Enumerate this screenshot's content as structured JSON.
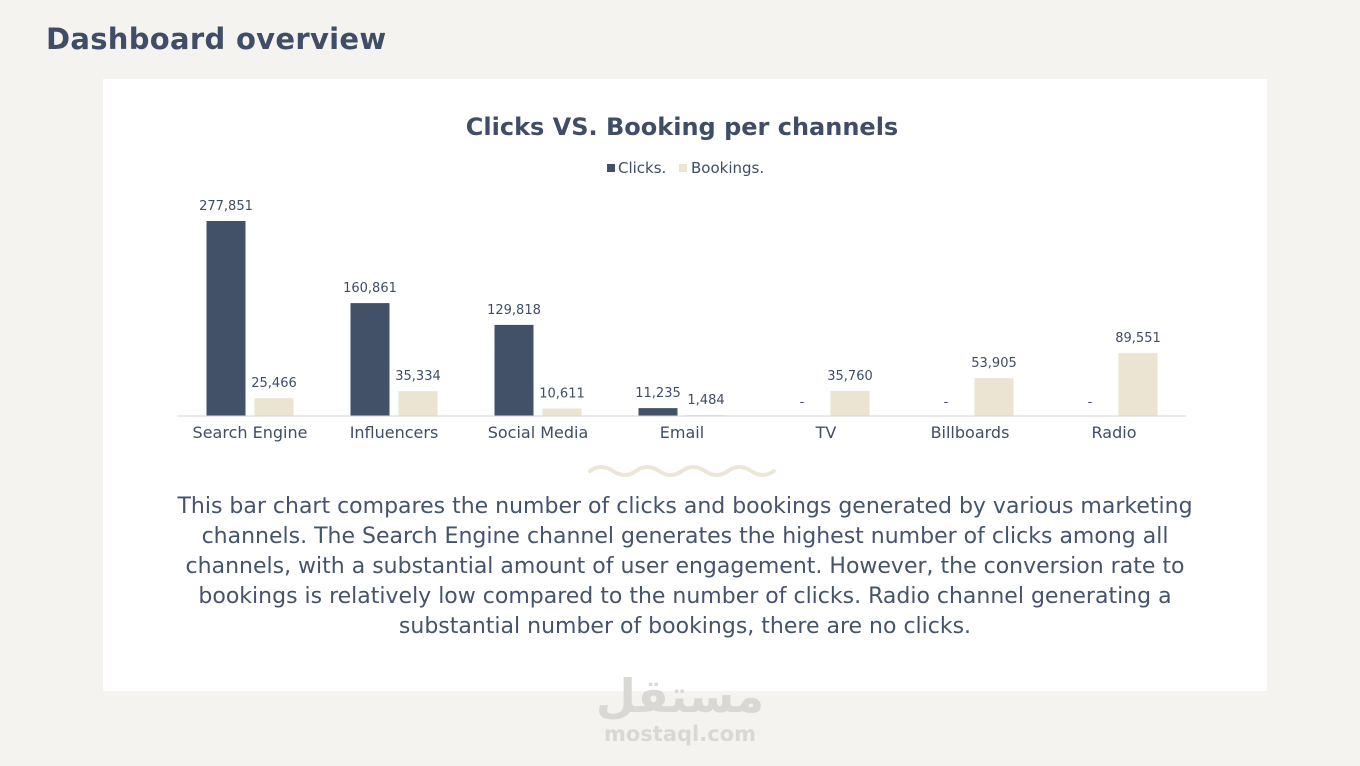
{
  "page": {
    "title": "Dashboard overview"
  },
  "colors": {
    "clicks": "#435168",
    "bookings": "#ebe4d2",
    "text": "#3f4d66",
    "background": "#f4f3ef"
  },
  "chart_data": {
    "type": "bar",
    "title": "Clicks VS. Booking per channels",
    "legend_position": "top-center",
    "grid": false,
    "categories": [
      "Search Engine",
      "Influencers",
      "Social Media",
      "Email",
      "TV",
      "Billboards",
      "Radio"
    ],
    "series": [
      {
        "name": "Clicks.",
        "values": [
          277851,
          160861,
          129818,
          11235,
          0,
          0,
          0
        ],
        "labels": [
          "277,851",
          "160,861",
          "129,818",
          "11,235",
          "-",
          "-",
          "-"
        ]
      },
      {
        "name": "Bookings.",
        "values": [
          25466,
          35334,
          10611,
          1484,
          35760,
          53905,
          89551
        ],
        "labels": [
          "25,466",
          "35,334",
          "10,611",
          "1,484",
          "35,760",
          "53,905",
          "89,551"
        ]
      }
    ],
    "ylim": [
      0,
      277851
    ],
    "xlabel": "",
    "ylabel": ""
  },
  "description": {
    "text": "This bar chart compares the number of clicks and bookings generated by various marketing channels. The Search Engine channel generates the highest number of clicks among all channels, with a substantial amount of user engagement. However, the conversion rate to bookings is relatively low compared to the number of clicks. Radio channel generating a substantial number of bookings, there are no clicks."
  },
  "watermark": {
    "arabic": "مستقل",
    "latin": "mostaql.com"
  }
}
